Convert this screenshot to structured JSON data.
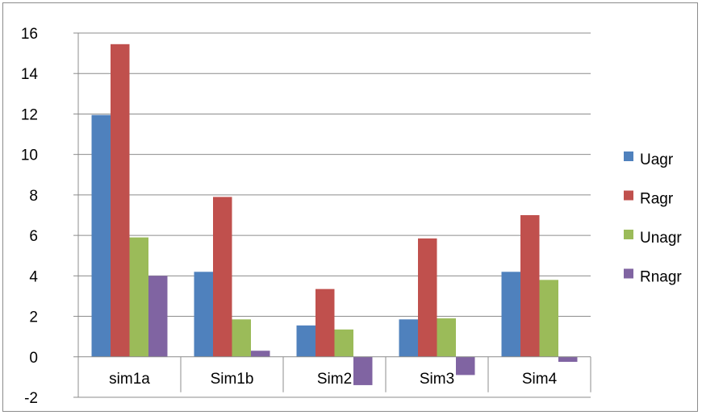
{
  "chart_data": {
    "type": "bar",
    "title": "",
    "xlabel": "",
    "ylabel": "",
    "categories": [
      "sim1a",
      "Sim1b",
      "Sim2",
      "Sim3",
      "Sim4"
    ],
    "series": [
      {
        "name": "Uagr",
        "color": "#4f81bd",
        "values": [
          11.95,
          4.2,
          1.55,
          1.85,
          4.2
        ]
      },
      {
        "name": "Ragr",
        "color": "#c0504d",
        "values": [
          15.45,
          7.9,
          3.35,
          5.85,
          7.0
        ]
      },
      {
        "name": "Unagr",
        "color": "#9bbb59",
        "values": [
          5.9,
          1.85,
          1.35,
          1.9,
          3.8
        ]
      },
      {
        "name": "Rnagr",
        "color": "#8064a2",
        "values": [
          4.0,
          0.3,
          -1.4,
          -0.9,
          -0.25
        ]
      }
    ],
    "ylim": [
      -2,
      16
    ],
    "yticks": [
      16,
      14,
      12,
      10,
      8,
      6,
      4,
      2,
      0,
      -2
    ],
    "grid": true,
    "legend_position": "right"
  }
}
